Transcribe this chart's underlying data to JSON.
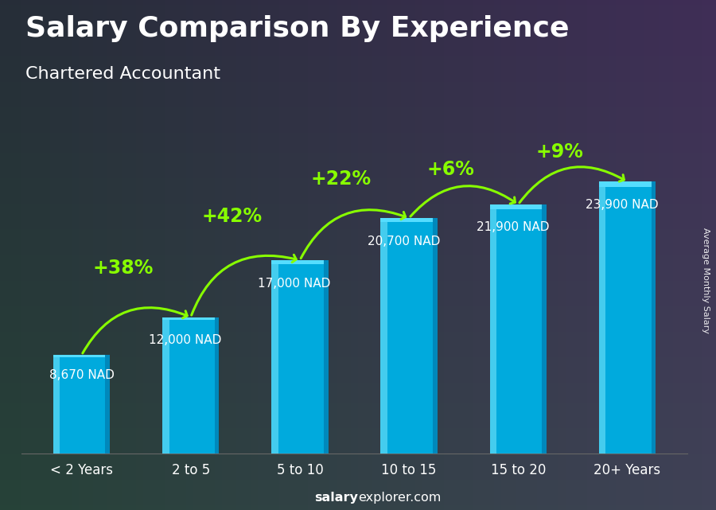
{
  "title": "Salary Comparison By Experience",
  "subtitle": "Chartered Accountant",
  "categories": [
    "< 2 Years",
    "2 to 5",
    "5 to 10",
    "10 to 15",
    "15 to 20",
    "20+ Years"
  ],
  "values": [
    8670,
    12000,
    17000,
    20700,
    21900,
    23900
  ],
  "value_labels": [
    "8,670 NAD",
    "12,000 NAD",
    "17,000 NAD",
    "20,700 NAD",
    "21,900 NAD",
    "23,900 NAD"
  ],
  "pct_labels": [
    "+38%",
    "+42%",
    "+22%",
    "+6%",
    "+9%"
  ],
  "bar_color_main": "#00AADD",
  "bar_color_light": "#44CCEE",
  "bar_color_side": "#0088BB",
  "bar_color_top": "#55DDFF",
  "pct_color": "#88FF00",
  "value_label_color": "#FFFFFF",
  "title_color": "#FFFFFF",
  "subtitle_color": "#FFFFFF",
  "bg_color": "#2a3a4a",
  "ylabel": "Average Monthly Salary",
  "footer_normal": "explorer.com",
  "footer_bold": "salary",
  "ylim": [
    0,
    30000
  ],
  "title_fontsize": 26,
  "subtitle_fontsize": 16,
  "pct_fontsize": 17,
  "val_fontsize": 11
}
